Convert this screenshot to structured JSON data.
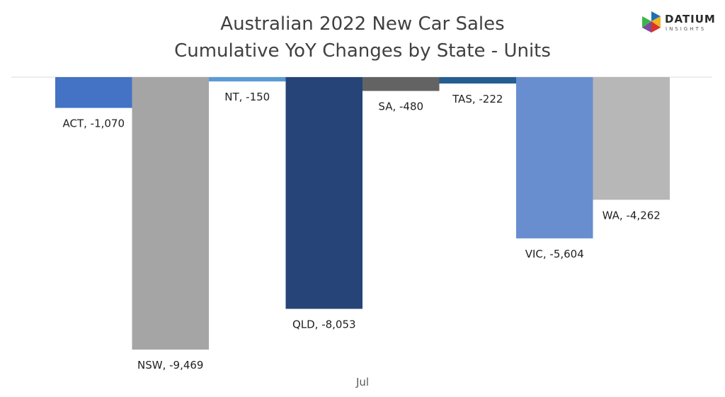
{
  "chart_data": {
    "type": "bar",
    "title_lines": [
      "Australian 2022 New Car Sales",
      "Cumulative YoY Changes by State - Units"
    ],
    "xlabel": "Jul",
    "ylabel": "",
    "grid": false,
    "legend": "none",
    "series": [
      {
        "state": "ACT",
        "value": -1070,
        "label": "ACT, -1,070",
        "color": "#4472c4"
      },
      {
        "state": "NSW",
        "value": -9469,
        "label": "NSW, -9,469",
        "color": "#a5a5a5"
      },
      {
        "state": "NT",
        "value": -150,
        "label": "NT, -150",
        "color": "#5b9bd5"
      },
      {
        "state": "QLD",
        "value": -8053,
        "label": "QLD, -8,053",
        "color": "#264478"
      },
      {
        "state": "SA",
        "value": -480,
        "label": "SA, -480",
        "color": "#636363"
      },
      {
        "state": "TAS",
        "value": -222,
        "label": "TAS, -222",
        "color": "#255e91"
      },
      {
        "state": "VIC",
        "value": -5604,
        "label": "VIC, -5,604",
        "color": "#698ed0"
      },
      {
        "state": "WA",
        "value": -4262,
        "label": "WA, -4,262",
        "color": "#b7b7b7"
      }
    ],
    "ylim": [
      -9469,
      0
    ]
  },
  "logo": {
    "name": "DATIUM",
    "tagline": "INSIGHTS",
    "colors": [
      "#1f6fb5",
      "#f0b323",
      "#d9342b",
      "#7c4a9e",
      "#3bb54a"
    ]
  }
}
